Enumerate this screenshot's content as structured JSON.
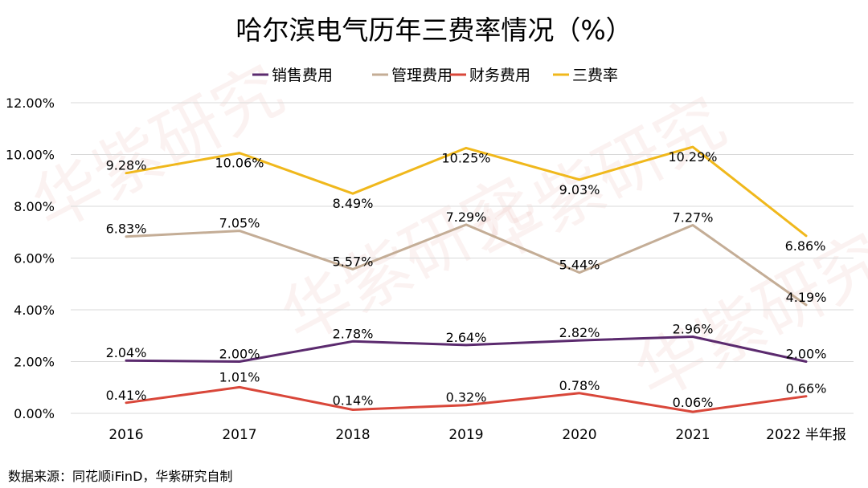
{
  "chart_data": {
    "type": "line",
    "title": "哈尔滨电气历年三费率情况（%）",
    "categories": [
      "2016",
      "2017",
      "2018",
      "2019",
      "2020",
      "2021",
      "2022 半年报"
    ],
    "ylim": [
      0,
      12
    ],
    "yticks": [
      "0.00%",
      "2.00%",
      "4.00%",
      "6.00%",
      "8.00%",
      "10.00%",
      "12.00%"
    ],
    "yticks_values": [
      0,
      2,
      4,
      6,
      8,
      10,
      12
    ],
    "grid": true,
    "legend_position": "top",
    "series": [
      {
        "name": "销售费用",
        "color": "#5b2a6e",
        "values": [
          2.04,
          2.0,
          2.78,
          2.64,
          2.82,
          2.96,
          2.0
        ],
        "labels": [
          "2.04%",
          "2.00%",
          "2.78%",
          "2.64%",
          "2.82%",
          "2.96%",
          "2.00%"
        ]
      },
      {
        "name": "管理费用",
        "color": "#c4ad96",
        "values": [
          6.83,
          7.05,
          5.57,
          7.29,
          5.44,
          7.27,
          4.19
        ],
        "labels": [
          "6.83%",
          "7.05%",
          "5.57%",
          "7.29%",
          "5.44%",
          "7.27%",
          "4.19%"
        ]
      },
      {
        "name": "财务费用",
        "color": "#d9473a",
        "values": [
          0.41,
          1.01,
          0.14,
          0.32,
          0.78,
          0.06,
          0.66
        ],
        "labels": [
          "0.41%",
          "1.01%",
          "0.14%",
          "0.32%",
          "0.78%",
          "0.06%",
          "0.66%"
        ]
      },
      {
        "name": "三费率",
        "color": "#f0b81c",
        "values": [
          9.28,
          10.06,
          8.49,
          10.25,
          9.03,
          10.29,
          6.86
        ],
        "labels": [
          "9.28%",
          "10.06%",
          "8.49%",
          "10.25%",
          "9.03%",
          "10.29%",
          "6.86%"
        ]
      }
    ]
  },
  "source": "数据来源：同花顺iFinD，华紫研究自制",
  "watermark": "华紫研究"
}
